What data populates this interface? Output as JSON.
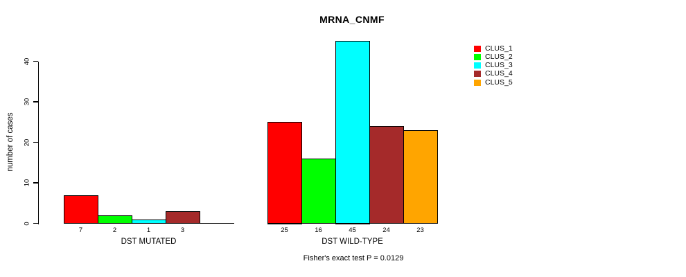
{
  "title": "MRNA_CNMF",
  "chart_data": {
    "type": "bar",
    "title": "MRNA_CNMF",
    "xlabel": "",
    "ylabel": "number of cases",
    "ylim": [
      0,
      45
    ],
    "yticks": [
      0,
      10,
      20,
      30,
      40
    ],
    "grid": false,
    "legend_position": "right",
    "categories": [
      "DST MUTATED",
      "DST WILD-TYPE"
    ],
    "series": [
      {
        "name": "CLUS_1",
        "color": "#FF0000",
        "values": [
          7,
          25
        ]
      },
      {
        "name": "CLUS_2",
        "color": "#00FF00",
        "values": [
          2,
          16
        ]
      },
      {
        "name": "CLUS_3",
        "color": "#00FFFF",
        "values": [
          1,
          45
        ]
      },
      {
        "name": "CLUS_4",
        "color": "#A52A2A",
        "values": [
          3,
          24
        ]
      },
      {
        "name": "CLUS_5",
        "color": "#FFA500",
        "values": [
          0,
          23
        ]
      }
    ],
    "bar_value_labels": [
      [
        "7",
        "2",
        "1",
        "3",
        ""
      ],
      [
        "25",
        "16",
        "45",
        "24",
        "23"
      ]
    ],
    "annotation": "Fisher's exact test P = 0.0129"
  }
}
